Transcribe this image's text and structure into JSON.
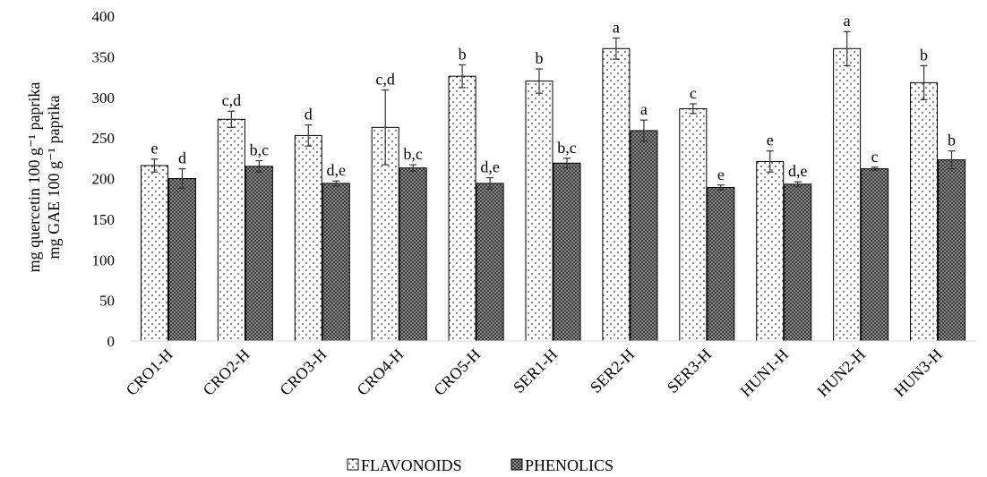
{
  "chart_data": {
    "type": "bar",
    "ylabel_line1": "mg quercetin 100 g⁻¹ paprika",
    "ylabel_line2": "mg GAE 100 g⁻¹ paprika",
    "ylim": [
      0,
      400
    ],
    "yticks": [
      0,
      50,
      100,
      150,
      200,
      250,
      300,
      350,
      400
    ],
    "categories": [
      "CRO1-H",
      "CRO2-H",
      "CRO3-H",
      "CRO4-H",
      "CRO5-H",
      "SER1-H",
      "SER2-H",
      "SER3-H",
      "HUN1-H",
      "HUN2-H",
      "HUN3-H"
    ],
    "series": [
      {
        "name": "FLAVONOIDS",
        "pattern": "dots",
        "values": [
          216,
          273,
          253,
          263,
          326,
          320,
          360,
          286,
          221,
          360,
          318
        ],
        "errors": [
          8,
          10,
          13,
          46,
          14,
          15,
          13,
          6,
          13,
          21,
          21
        ],
        "letters": [
          "e",
          "c,d",
          "d",
          "c,d",
          "b",
          "b",
          "a",
          "c",
          "e",
          "a",
          "b"
        ]
      },
      {
        "name": "PHENOLICS",
        "pattern": "checker",
        "values": [
          200,
          215,
          194,
          213,
          194,
          219,
          259,
          189,
          193,
          212,
          223
        ],
        "errors": [
          12,
          7,
          3,
          4,
          7,
          6,
          13,
          3,
          3,
          2,
          11
        ],
        "letters": [
          "d",
          "b,c",
          "d,e",
          "b,c",
          "d,e",
          "b,c",
          "a",
          "e",
          "d,e",
          "c",
          "b"
        ]
      }
    ],
    "grid": false,
    "legend_position": "bottom-center",
    "colors": {
      "bar_fill": "#ffffff",
      "stroke": "#000000",
      "axis": "#d9d9d9"
    }
  }
}
